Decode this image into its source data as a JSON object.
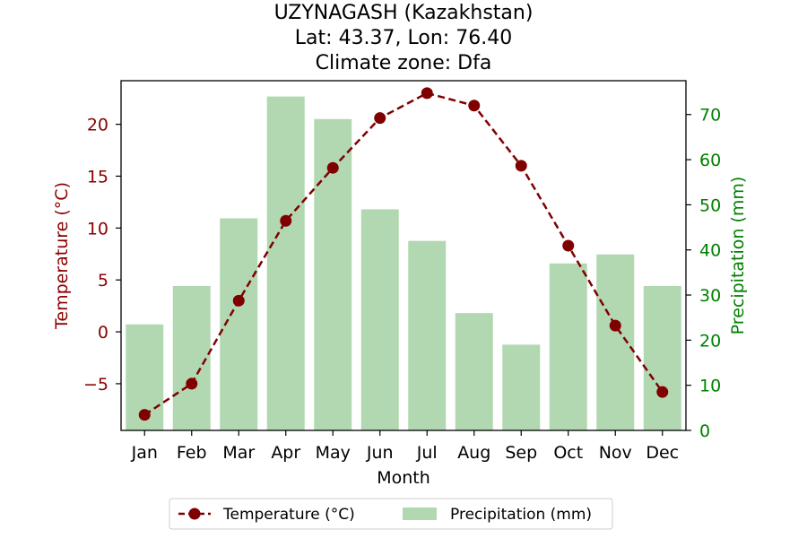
{
  "chart_data": {
    "type": "bar+line",
    "title_lines": [
      "UZYNAGASH (Kazakhstan)",
      "Lat: 43.37, Lon: 76.40",
      "Climate zone: Dfa"
    ],
    "xlabel": "Month",
    "y_left_label": "Temperature (°C)",
    "y_right_label": "Precipitation (mm)",
    "categories": [
      "Jan",
      "Feb",
      "Mar",
      "Apr",
      "May",
      "Jun",
      "Jul",
      "Aug",
      "Sep",
      "Oct",
      "Nov",
      "Dec"
    ],
    "temperature": {
      "name": "Temperature (°C)",
      "values": [
        -8.0,
        -5.0,
        3.0,
        10.7,
        15.8,
        20.6,
        23.0,
        21.8,
        16.0,
        8.3,
        0.6,
        -5.8
      ],
      "color": "#800000",
      "style": "dashed line with circle markers"
    },
    "precipitation": {
      "name": "Precipitation (mm)",
      "values": [
        23.5,
        32,
        47,
        74,
        69,
        49,
        42,
        26,
        19,
        37,
        39,
        32
      ],
      "color": "#b2d8b2"
    },
    "y_left_ticks": [
      "−5",
      "0",
      "5",
      "10",
      "15",
      "20"
    ],
    "y_right_ticks": [
      "0",
      "10",
      "20",
      "30",
      "40",
      "50",
      "60",
      "70"
    ],
    "y_left_lim": [
      -9.5,
      24.2
    ],
    "y_right_lim": [
      0,
      77.5
    ],
    "left_axis_color": "#8b0000",
    "right_axis_color": "#008000",
    "legend_position": "bottom-center",
    "grid": false
  }
}
